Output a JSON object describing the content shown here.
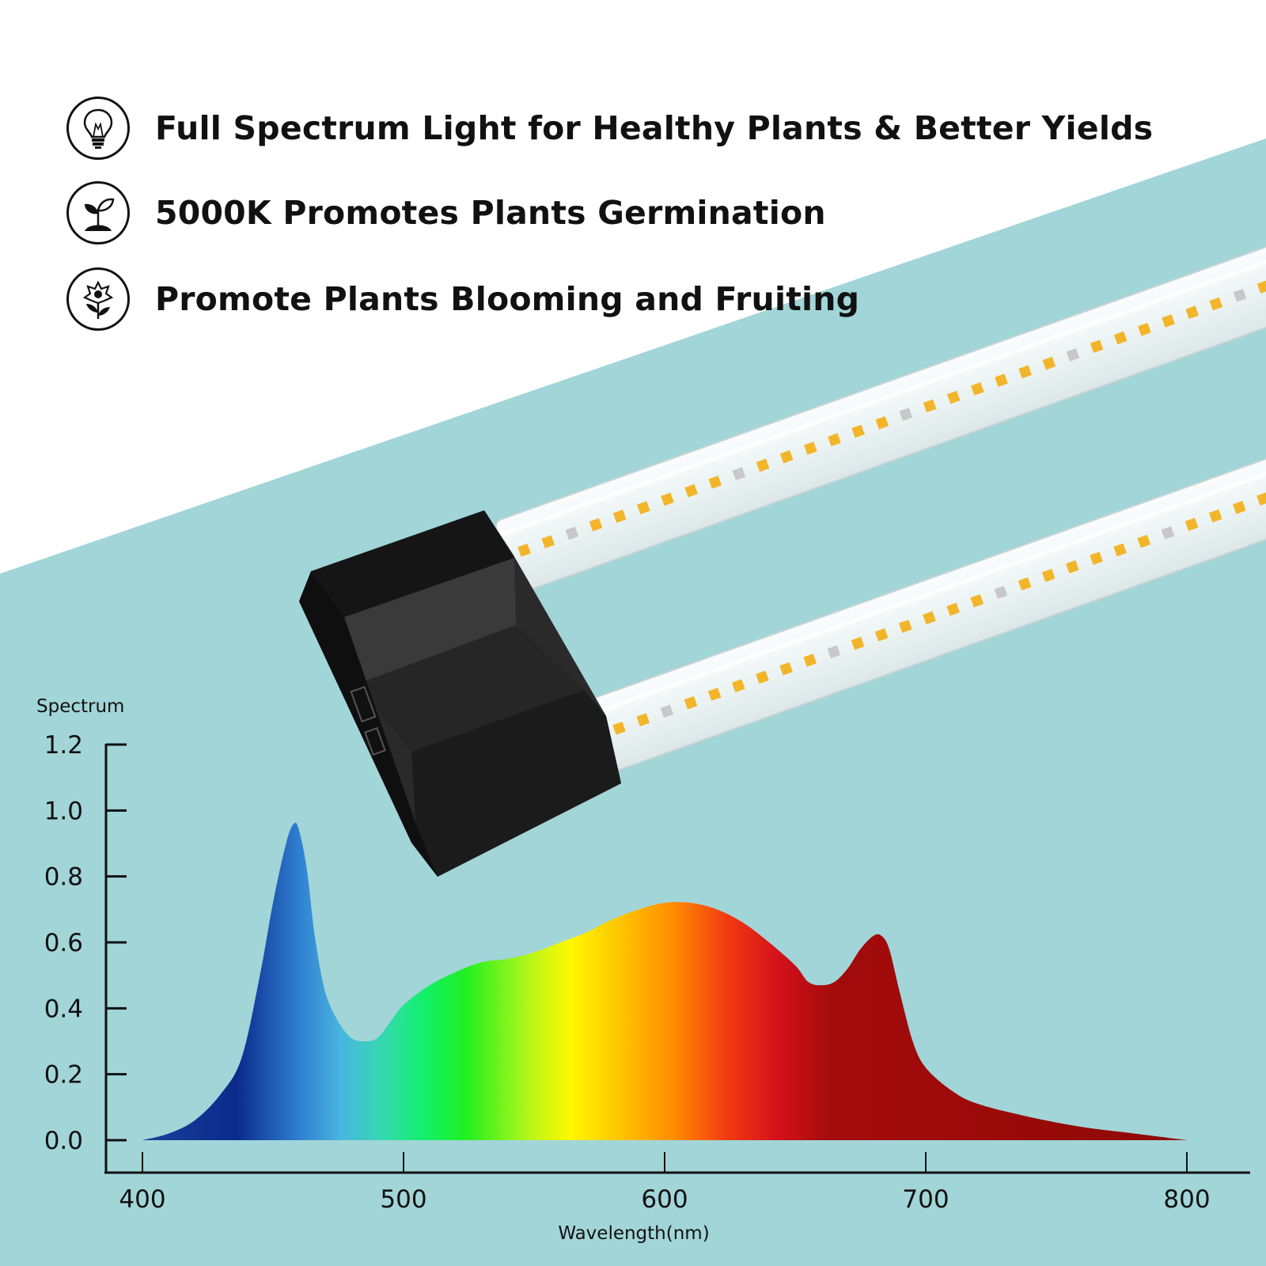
{
  "features": [
    {
      "icon": "light-bulb-icon",
      "text": "Full Spectrum Light for Healthy Plants & Better Yields"
    },
    {
      "icon": "sprout-icon",
      "text": "5000K Promotes Plants Germination"
    },
    {
      "icon": "flower-icon",
      "text": "Promote Plants Blooming and Fruiting"
    }
  ],
  "colors": {
    "background_teal": "#a2d5d8",
    "fixture_black": "#1c1c1c",
    "led_amber": "#f2b52a",
    "led_white": "#c8c8c8"
  },
  "chart_data": {
    "type": "area",
    "title": "",
    "xlabel": "Wavelength(nm)",
    "ylabel": "Spectrum",
    "xlim": [
      400,
      800
    ],
    "ylim": [
      0.0,
      1.2
    ],
    "x_ticks": [
      "400",
      "500",
      "600",
      "700",
      "800"
    ],
    "y_ticks": [
      "0.0",
      "0.2",
      "0.4",
      "0.6",
      "0.8",
      "1.0",
      "1.2"
    ],
    "grid": false,
    "legend": "none",
    "gradient": "wavelength-colored fill: blue (400-470), cyan/green (480-520), yellow (560), orange (600), red (640), dark red (660-800)",
    "series": [
      {
        "x": [
          400,
          410,
          420,
          430,
          438,
          445,
          450,
          455,
          458,
          460,
          463,
          466,
          470,
          475,
          480,
          485,
          490,
          495,
          500,
          510,
          520,
          530,
          540,
          550,
          560,
          570,
          580,
          590,
          600,
          610,
          620,
          630,
          640,
          650,
          655,
          660,
          665,
          670,
          675,
          680,
          683,
          686,
          690,
          695,
          700,
          710,
          720,
          740,
          760,
          780,
          800
        ],
        "y": [
          0.0,
          0.02,
          0.06,
          0.14,
          0.25,
          0.5,
          0.72,
          0.9,
          0.96,
          0.94,
          0.82,
          0.62,
          0.45,
          0.36,
          0.31,
          0.3,
          0.31,
          0.36,
          0.41,
          0.47,
          0.51,
          0.54,
          0.55,
          0.57,
          0.6,
          0.63,
          0.67,
          0.7,
          0.72,
          0.72,
          0.7,
          0.66,
          0.6,
          0.53,
          0.48,
          0.47,
          0.48,
          0.52,
          0.58,
          0.62,
          0.62,
          0.58,
          0.45,
          0.3,
          0.22,
          0.15,
          0.11,
          0.07,
          0.04,
          0.02,
          0.0
        ]
      }
    ]
  }
}
